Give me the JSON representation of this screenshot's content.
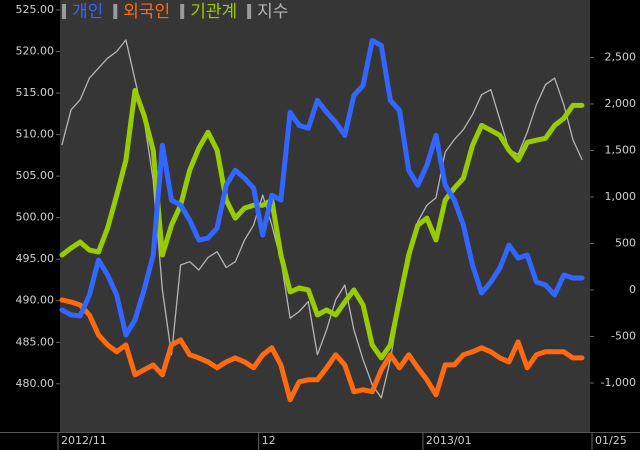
{
  "chart_data": {
    "type": "line",
    "categories": [
      "2012/11",
      null,
      null,
      null,
      null,
      null,
      null,
      null,
      null,
      null,
      null,
      null,
      null,
      null,
      null,
      null,
      null,
      null,
      null,
      null,
      null,
      null,
      "12",
      null,
      null,
      null,
      null,
      null,
      null,
      null,
      null,
      null,
      null,
      null,
      null,
      null,
      null,
      null,
      null,
      null,
      "2013/01",
      null,
      null,
      null,
      null,
      null,
      null,
      null,
      null,
      null,
      null,
      null,
      null,
      null,
      null,
      null,
      null,
      "01/25"
    ],
    "ylim": [
      474.2,
      526.2
    ],
    "yticks": [
      {
        "value": 480,
        "label": "480.00"
      },
      {
        "value": 485,
        "label": "485.00"
      },
      {
        "value": 490,
        "label": "490.00"
      },
      {
        "value": 495,
        "label": "495.00"
      },
      {
        "value": 500,
        "label": "500.00"
      },
      {
        "value": 505,
        "label": "505.00"
      },
      {
        "value": 510,
        "label": "510.00"
      },
      {
        "value": 515,
        "label": "515.00"
      },
      {
        "value": 520,
        "label": "520.00"
      },
      {
        "value": 525,
        "label": "525.00"
      }
    ],
    "y2lim": [
      -1527,
      3118
    ],
    "y2ticks": [
      {
        "value": -1000,
        "label": "-1,000"
      },
      -500,
      0,
      500,
      {
        "value": 1000,
        "label": "1,000"
      },
      {
        "value": 1500,
        "label": "1,500"
      },
      {
        "value": 2000,
        "label": "2,000"
      },
      {
        "value": 2500,
        "label": "2,500"
      }
    ],
    "series": [
      {
        "name": "개인",
        "color": "#3366ff",
        "axis": "y2",
        "values": [
          -215,
          -268,
          -279,
          -54,
          322,
          161,
          -54,
          -483,
          -322,
          0,
          376,
          1556,
          966,
          912,
          751,
          537,
          558,
          665,
          1127,
          1288,
          1202,
          1094,
          590,
          1019,
          966,
          1910,
          1770,
          1738,
          2039,
          1910,
          1803,
          1663,
          2092,
          2200,
          2683,
          2629,
          2039,
          1931,
          1288,
          1127,
          1341,
          1663,
          1127,
          966,
          697,
          268,
          -32,
          86,
          236,
          483,
          343,
          376,
          86,
          54,
          -54,
          161,
          129,
          129
        ]
      },
      {
        "name": "외국인",
        "color": "#ff6a10",
        "axis": "y2",
        "values": [
          -107,
          -129,
          -161,
          -268,
          -483,
          -590,
          -665,
          -590,
          -912,
          -858,
          -805,
          -912,
          -590,
          -537,
          -697,
          -730,
          -773,
          -837,
          -773,
          -730,
          -773,
          -837,
          -697,
          -622,
          -805,
          -1180,
          -987,
          -966,
          -966,
          -837,
          -697,
          -805,
          -1094,
          -1073,
          -1094,
          -858,
          -697,
          -837,
          -697,
          -837,
          -966,
          -1127,
          -805,
          -805,
          -697,
          -665,
          -622,
          -665,
          -730,
          -773,
          -558,
          -837,
          -697,
          -665,
          -665,
          -665,
          -730,
          -730
        ]
      },
      {
        "name": "기관계",
        "color": "#99cc00",
        "axis": "y2",
        "values": [
          376,
          451,
          515,
          429,
          408,
          665,
          1019,
          1395,
          2146,
          1878,
          1502,
          376,
          697,
          912,
          1288,
          1524,
          1695,
          1502,
          966,
          773,
          880,
          912,
          912,
          966,
          376,
          -21,
          21,
          0,
          -268,
          -215,
          -268,
          -129,
          0,
          -161,
          -590,
          -730,
          -590,
          -107,
          376,
          697,
          773,
          537,
          966,
          1094,
          1202,
          1556,
          1770,
          1717,
          1663,
          1502,
          1395,
          1588,
          1610,
          1631,
          1770,
          1846,
          1985,
          1985
        ]
      },
      {
        "name": "지수",
        "color": "#b4b4b4",
        "values": [
          508.8,
          513.0,
          514.2,
          516.8,
          518.0,
          519.2,
          520.0,
          521.4,
          516.6,
          511.8,
          504.5,
          491.3,
          483.5,
          494.3,
          494.7,
          493.7,
          495.2,
          495.9,
          494.0,
          494.7,
          497.3,
          499.1,
          502.7,
          499.1,
          494.9,
          487.9,
          488.7,
          489.9,
          483.5,
          486.5,
          490.1,
          491.9,
          486.5,
          482.9,
          479.9,
          478.3,
          482.9,
          489.5,
          494.3,
          499.5,
          501.5,
          502.4,
          507.9,
          509.4,
          510.6,
          512.4,
          514.8,
          515.4,
          511.8,
          508.2,
          507.6,
          510.3,
          513.6,
          516.0,
          516.8,
          513.6,
          509.4,
          507.0
        ]
      }
    ]
  }
}
